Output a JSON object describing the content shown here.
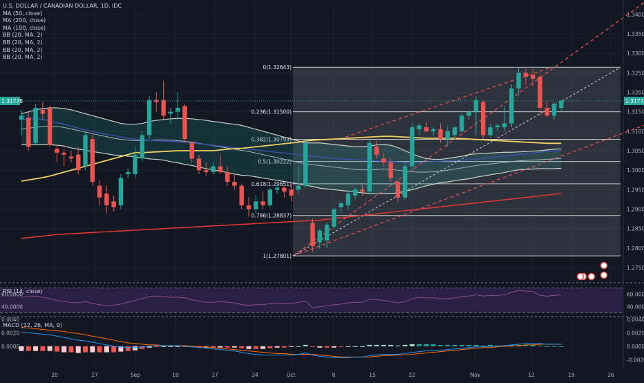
{
  "legend": {
    "title": "U.S. DOLLAR / CANADIAN DOLLAR, 1D, IDC",
    "indicators": [
      "MA (50, close)",
      "MA (200, close)",
      "MA (100, close)",
      "BB (20, MA, 2)",
      "BB (20, MA, 2)",
      "BB (20, MA, 2)",
      "BB (20, MA, 2)"
    ]
  },
  "rsi_label": "RSI (14, close)",
  "macd_label": "MACD (12, 26, MA, 9)",
  "colors": {
    "background": "#131722",
    "up": "#26a69a",
    "down": "#ef5350",
    "ma50": "#f0d264",
    "ma200": "#e53935",
    "ma100": "#3f51b5",
    "bb": "#c8d2c8",
    "fib": "#c8c8c8",
    "rsi_bg": "#2a1f45",
    "rsi_line": "#8a4f8c",
    "macd_line": "#2196f3",
    "signal_line": "#ff6d00"
  },
  "chart_data": {
    "type": "candlestick",
    "title": "U.S. DOLLAR / CANADIAN DOLLAR, 1D, IDC",
    "price_axis": {
      "range": [
        1.272,
        1.3412
      ],
      "ticks": [
        "1.34000",
        "1.33500",
        "1.33000",
        "1.32500",
        "1.32000",
        "1.31500",
        "1.31000",
        "1.30500",
        "1.30000",
        "1.29500",
        "1.29000",
        "1.28500",
        "1.28000",
        "1.27500"
      ]
    },
    "last_price": "1.31778",
    "x_axis": {
      "ticks": [
        "20",
        "27",
        "Sep",
        "10",
        "17",
        "24",
        "Oct",
        "8",
        "15",
        "22",
        "Nov",
        "12",
        "19",
        "26"
      ]
    },
    "candles": [
      {
        "o": 1.313,
        "h": 1.3155,
        "l": 1.309,
        "c": 1.314
      },
      {
        "o": 1.3135,
        "h": 1.315,
        "l": 1.305,
        "c": 1.306
      },
      {
        "o": 1.307,
        "h": 1.317,
        "l": 1.3065,
        "c": 1.316
      },
      {
        "o": 1.3155,
        "h": 1.3175,
        "l": 1.313,
        "c": 1.3145
      },
      {
        "o": 1.316,
        "h": 1.3165,
        "l": 1.306,
        "c": 1.3065
      },
      {
        "o": 1.3055,
        "h": 1.3065,
        "l": 1.302,
        "c": 1.3045
      },
      {
        "o": 1.3045,
        "h": 1.3055,
        "l": 1.301,
        "c": 1.304
      },
      {
        "o": 1.3035,
        "h": 1.305,
        "l": 1.302,
        "c": 1.303
      },
      {
        "o": 1.304,
        "h": 1.306,
        "l": 1.299,
        "c": 1.3
      },
      {
        "o": 1.301,
        "h": 1.31,
        "l": 1.3,
        "c": 1.309
      },
      {
        "o": 1.308,
        "h": 1.3095,
        "l": 1.296,
        "c": 1.297
      },
      {
        "o": 1.296,
        "h": 1.2975,
        "l": 1.291,
        "c": 1.293
      },
      {
        "o": 1.294,
        "h": 1.296,
        "l": 1.289,
        "c": 1.291
      },
      {
        "o": 1.292,
        "h": 1.2935,
        "l": 1.2895,
        "c": 1.2905
      },
      {
        "o": 1.291,
        "h": 1.299,
        "l": 1.29,
        "c": 1.298
      },
      {
        "o": 1.299,
        "h": 1.3005,
        "l": 1.298,
        "c": 1.2995
      },
      {
        "o": 1.299,
        "h": 1.306,
        "l": 1.298,
        "c": 1.304
      },
      {
        "o": 1.303,
        "h": 1.31,
        "l": 1.302,
        "c": 1.309
      },
      {
        "o": 1.309,
        "h": 1.319,
        "l": 1.308,
        "c": 1.318
      },
      {
        "o": 1.318,
        "h": 1.32,
        "l": 1.315,
        "c": 1.3175
      },
      {
        "o": 1.318,
        "h": 1.323,
        "l": 1.313,
        "c": 1.314
      },
      {
        "o": 1.3145,
        "h": 1.316,
        "l": 1.312,
        "c": 1.315
      },
      {
        "o": 1.315,
        "h": 1.32,
        "l": 1.313,
        "c": 1.316
      },
      {
        "o": 1.3165,
        "h": 1.317,
        "l": 1.307,
        "c": 1.308
      },
      {
        "o": 1.307,
        "h": 1.3075,
        "l": 1.302,
        "c": 1.303
      },
      {
        "o": 1.303,
        "h": 1.304,
        "l": 1.299,
        "c": 1.3
      },
      {
        "o": 1.3,
        "h": 1.302,
        "l": 1.2985,
        "c": 1.2995
      },
      {
        "o": 1.2995,
        "h": 1.302,
        "l": 1.299,
        "c": 1.301
      },
      {
        "o": 1.301,
        "h": 1.304,
        "l": 1.299,
        "c": 1.2995
      },
      {
        "o": 1.2995,
        "h": 1.301,
        "l": 1.296,
        "c": 1.297
      },
      {
        "o": 1.297,
        "h": 1.299,
        "l": 1.295,
        "c": 1.296
      },
      {
        "o": 1.296,
        "h": 1.2965,
        "l": 1.29,
        "c": 1.291
      },
      {
        "o": 1.291,
        "h": 1.293,
        "l": 1.288,
        "c": 1.29
      },
      {
        "o": 1.29,
        "h": 1.2935,
        "l": 1.289,
        "c": 1.292
      },
      {
        "o": 1.292,
        "h": 1.2945,
        "l": 1.29,
        "c": 1.291
      },
      {
        "o": 1.291,
        "h": 1.2955,
        "l": 1.2905,
        "c": 1.295
      },
      {
        "o": 1.295,
        "h": 1.2965,
        "l": 1.294,
        "c": 1.2955
      },
      {
        "o": 1.2955,
        "h": 1.296,
        "l": 1.293,
        "c": 1.2945
      },
      {
        "o": 1.295,
        "h": 1.2965,
        "l": 1.292,
        "c": 1.2935
      },
      {
        "o": 1.295,
        "h": 1.301,
        "l": 1.294,
        "c": 1.296
      },
      {
        "o": 1.296,
        "h": 1.308,
        "l": 1.2955,
        "c": 1.307
      },
      {
        "o": 1.2865,
        "h": 1.2875,
        "l": 1.279,
        "c": 1.2805
      },
      {
        "o": 1.2815,
        "h": 1.285,
        "l": 1.28,
        "c": 1.2845
      },
      {
        "o": 1.282,
        "h": 1.2865,
        "l": 1.28,
        "c": 1.286
      },
      {
        "o": 1.2855,
        "h": 1.2905,
        "l": 1.285,
        "c": 1.29
      },
      {
        "o": 1.2905,
        "h": 1.292,
        "l": 1.289,
        "c": 1.2915
      },
      {
        "o": 1.291,
        "h": 1.295,
        "l": 1.29,
        "c": 1.294
      },
      {
        "o": 1.2935,
        "h": 1.2955,
        "l": 1.2925,
        "c": 1.295
      },
      {
        "o": 1.295,
        "h": 1.2965,
        "l": 1.2935,
        "c": 1.2945
      },
      {
        "o": 1.2945,
        "h": 1.308,
        "l": 1.294,
        "c": 1.307
      },
      {
        "o": 1.306,
        "h": 1.3075,
        "l": 1.303,
        "c": 1.304
      },
      {
        "o": 1.303,
        "h": 1.3045,
        "l": 1.301,
        "c": 1.302
      },
      {
        "o": 1.302,
        "h": 1.303,
        "l": 1.297,
        "c": 1.298
      },
      {
        "o": 1.297,
        "h": 1.2975,
        "l": 1.292,
        "c": 1.293
      },
      {
        "o": 1.293,
        "h": 1.302,
        "l": 1.2925,
        "c": 1.301
      },
      {
        "o": 1.301,
        "h": 1.312,
        "l": 1.3,
        "c": 1.311
      },
      {
        "o": 1.3105,
        "h": 1.312,
        "l": 1.309,
        "c": 1.3115
      },
      {
        "o": 1.311,
        "h": 1.3125,
        "l": 1.3095,
        "c": 1.31
      },
      {
        "o": 1.31,
        "h": 1.311,
        "l": 1.309,
        "c": 1.3105
      },
      {
        "o": 1.3105,
        "h": 1.312,
        "l": 1.307,
        "c": 1.308
      },
      {
        "o": 1.308,
        "h": 1.3115,
        "l": 1.306,
        "c": 1.31
      },
      {
        "o": 1.309,
        "h": 1.3115,
        "l": 1.308,
        "c": 1.311
      },
      {
        "o": 1.31,
        "h": 1.315,
        "l": 1.3095,
        "c": 1.314
      },
      {
        "o": 1.314,
        "h": 1.3155,
        "l": 1.313,
        "c": 1.315
      },
      {
        "o": 1.315,
        "h": 1.319,
        "l": 1.309,
        "c": 1.318
      },
      {
        "o": 1.3175,
        "h": 1.318,
        "l": 1.308,
        "c": 1.309
      },
      {
        "o": 1.309,
        "h": 1.312,
        "l": 1.3085,
        "c": 1.311
      },
      {
        "o": 1.311,
        "h": 1.312,
        "l": 1.31,
        "c": 1.3115
      },
      {
        "o": 1.311,
        "h": 1.3165,
        "l": 1.31,
        "c": 1.312
      },
      {
        "o": 1.312,
        "h": 1.322,
        "l": 1.311,
        "c": 1.321
      },
      {
        "o": 1.321,
        "h": 1.3264,
        "l": 1.319,
        "c": 1.325
      },
      {
        "o": 1.325,
        "h": 1.326,
        "l": 1.322,
        "c": 1.324
      },
      {
        "o": 1.3245,
        "h": 1.326,
        "l": 1.3215,
        "c": 1.3235
      },
      {
        "o": 1.324,
        "h": 1.325,
        "l": 1.314,
        "c": 1.316
      },
      {
        "o": 1.316,
        "h": 1.3175,
        "l": 1.3135,
        "c": 1.314
      },
      {
        "o": 1.314,
        "h": 1.3175,
        "l": 1.313,
        "c": 1.317
      },
      {
        "o": 1.316,
        "h": 1.318,
        "l": 1.315,
        "c": 1.3178
      }
    ],
    "ma50": [
      1.2972,
      1.2975,
      1.2978,
      1.2981,
      1.2985,
      1.299,
      1.2995,
      1.3,
      1.3005,
      1.301,
      1.3015,
      1.302,
      1.3025,
      1.303,
      1.3035,
      1.304,
      1.3045,
      1.3045,
      1.3046,
      1.3047,
      1.3048,
      1.3049,
      1.305,
      1.305,
      1.305,
      1.305,
      1.305,
      1.305,
      1.3052,
      1.3054,
      1.3055,
      1.3056,
      1.3058,
      1.306,
      1.3062,
      1.3064,
      1.3066,
      1.3068,
      1.307,
      1.3072,
      1.3075,
      1.3077,
      1.3078,
      1.3079,
      1.308,
      1.3081,
      1.3082,
      1.3083,
      1.3084,
      1.3085,
      1.3086,
      1.3087,
      1.3087,
      1.3086,
      1.3085,
      1.3084,
      1.3083,
      1.3082,
      1.3082,
      1.3082,
      1.3082,
      1.3082,
      1.3081,
      1.308,
      1.3079,
      1.3078,
      1.3077,
      1.3076,
      1.3075,
      1.3074,
      1.3073,
      1.3072,
      1.3071,
      1.307,
      1.3069,
      1.3069,
      1.3069
    ],
    "ma100": [
      1.313,
      1.3132,
      1.3132,
      1.313,
      1.3127,
      1.3122,
      1.3118,
      1.3113,
      1.3108,
      1.3104,
      1.31,
      1.3096,
      1.3092,
      1.3089,
      1.3085,
      1.3082,
      1.308,
      1.3078,
      1.3077,
      1.3076,
      1.3075,
      1.3074,
      1.3073,
      1.3072,
      1.307,
      1.3068,
      1.3066,
      1.3064,
      1.3062,
      1.306,
      1.3058,
      1.3056,
      1.3054,
      1.3052,
      1.305,
      1.3048,
      1.3046,
      1.3044,
      1.3042,
      1.304,
      1.3038,
      1.3036,
      1.3034,
      1.3032,
      1.303,
      1.3029,
      1.3028,
      1.3027,
      1.3026,
      1.3025,
      1.3024,
      1.3023,
      1.3022,
      1.3021,
      1.302,
      1.302,
      1.302,
      1.3021,
      1.3022,
      1.3023,
      1.3024,
      1.3025,
      1.3026,
      1.3027,
      1.3028,
      1.303,
      1.3032,
      1.3034,
      1.3036,
      1.3038,
      1.304,
      1.3042,
      1.3044,
      1.3046,
      1.3048,
      1.3049,
      1.305
    ],
    "ma200": [
      1.2825,
      1.2827,
      1.2829,
      1.2831,
      1.2833,
      1.2835,
      1.2836,
      1.2837,
      1.2838,
      1.2839,
      1.284,
      1.2841,
      1.2842,
      1.2843,
      1.2844,
      1.2845,
      1.2846,
      1.2847,
      1.2848,
      1.2849,
      1.285,
      1.2851,
      1.2852,
      1.2853,
      1.2854,
      1.2855,
      1.2856,
      1.2857,
      1.2858,
      1.2859,
      1.286,
      1.2861,
      1.2862,
      1.2863,
      1.2864,
      1.2865,
      1.2866,
      1.2867,
      1.2868,
      1.2869,
      1.287,
      1.2871,
      1.2872,
      1.2874,
      1.2876,
      1.2878,
      1.288,
      1.2882,
      1.2884,
      1.2886,
      1.2888,
      1.289,
      1.2892,
      1.2894,
      1.2896,
      1.2898,
      1.29,
      1.2902,
      1.2904,
      1.2906,
      1.2908,
      1.291,
      1.2912,
      1.2914,
      1.2916,
      1.2918,
      1.292,
      1.2922,
      1.2924,
      1.2926,
      1.2928,
      1.293,
      1.2932,
      1.2934,
      1.2936,
      1.2938,
      1.294
    ],
    "bb_upper": [
      1.3145,
      1.315,
      1.3155,
      1.3158,
      1.316,
      1.316,
      1.3158,
      1.3155,
      1.315,
      1.3145,
      1.314,
      1.3135,
      1.313,
      1.3125,
      1.312,
      1.3118,
      1.3118,
      1.312,
      1.3125,
      1.3128,
      1.313,
      1.3132,
      1.3133,
      1.3133,
      1.3132,
      1.313,
      1.3128,
      1.3125,
      1.3123,
      1.312,
      1.3118,
      1.3115,
      1.311,
      1.3105,
      1.31,
      1.3095,
      1.309,
      1.3085,
      1.308,
      1.3075,
      1.307,
      1.307,
      1.307,
      1.3068,
      1.3066,
      1.3064,
      1.3062,
      1.306,
      1.306,
      1.3062,
      1.3065,
      1.3066,
      1.3064,
      1.3058,
      1.305,
      1.3042,
      1.3035,
      1.303,
      1.3028,
      1.3028,
      1.303,
      1.3033,
      1.3036,
      1.304,
      1.3042,
      1.3043,
      1.3044,
      1.3045,
      1.3046,
      1.3046,
      1.3047,
      1.3048,
      1.3049,
      1.305,
      1.3052,
      1.3054,
      1.3055
    ],
    "bb_middle": [
      1.3105,
      1.3108,
      1.311,
      1.3112,
      1.3113,
      1.3112,
      1.311,
      1.3106,
      1.3102,
      1.3098,
      1.3094,
      1.309,
      1.3086,
      1.3082,
      1.3079,
      1.3077,
      1.3076,
      1.3076,
      1.3077,
      1.3078,
      1.3078,
      1.3077,
      1.3076,
      1.3074,
      1.3072,
      1.3069,
      1.3066,
      1.3063,
      1.306,
      1.3057,
      1.3054,
      1.3051,
      1.3048,
      1.3044,
      1.304,
      1.3036,
      1.3032,
      1.3028,
      1.3024,
      1.302,
      1.3016,
      1.3014,
      1.3012,
      1.301,
      1.3008,
      1.3006,
      1.3004,
      1.3002,
      1.3001,
      1.3001,
      1.3002,
      1.3003,
      1.3002,
      1.3,
      1.2998,
      1.2996,
      1.2995,
      1.2995,
      1.2996,
      1.2998,
      1.3,
      1.3003,
      1.3006,
      1.3009,
      1.3012,
      1.3014,
      1.3016,
      1.3018,
      1.302,
      1.3022,
      1.3024,
      1.3025,
      1.3026,
      1.3027,
      1.3028,
      1.3029,
      1.303
    ],
    "bb_lower": [
      1.3065,
      1.3066,
      1.3065,
      1.3066,
      1.3066,
      1.3064,
      1.3062,
      1.3057,
      1.3054,
      1.3051,
      1.3048,
      1.3045,
      1.3042,
      1.3039,
      1.3038,
      1.3036,
      1.3034,
      1.3032,
      1.3029,
      1.3028,
      1.3026,
      1.3022,
      1.3019,
      1.3015,
      1.3012,
      1.3008,
      1.3004,
      1.3001,
      1.2997,
      1.2994,
      1.299,
      1.2987,
      1.2986,
      1.2983,
      1.298,
      1.2977,
      1.2974,
      1.2971,
      1.2968,
      1.2965,
      1.2962,
      1.2958,
      1.2954,
      1.2952,
      1.295,
      1.2948,
      1.2946,
      1.2944,
      1.2942,
      1.294,
      1.2939,
      1.294,
      1.294,
      1.2942,
      1.2946,
      1.295,
      1.2955,
      1.296,
      1.2964,
      1.2968,
      1.297,
      1.2973,
      1.2976,
      1.2978,
      1.2982,
      1.2985,
      1.2988,
      1.2991,
      1.2994,
      1.2998,
      1.3001,
      1.3002,
      1.3003,
      1.3004,
      1.3004,
      1.3004,
      1.3005
    ],
    "fibonacci": [
      {
        "label": "0(1.32643)",
        "price": 1.32643
      },
      {
        "label": "0.236(1.31500)",
        "price": 1.315
      },
      {
        "label": "0.382(1.30793)",
        "price": 1.30793
      },
      {
        "label": "0.5(1.30222)",
        "price": 1.30222
      },
      {
        "label": "0.618(1.29651)",
        "price": 1.29651
      },
      {
        "label": "0.786(1.28837)",
        "price": 1.28837
      },
      {
        "label": "1(1.27801)",
        "price": 1.27801
      }
    ],
    "rsi": {
      "ticks": [
        "60.0000",
        "40.0000"
      ],
      "range": [
        26,
        74
      ],
      "values": [
        55,
        56,
        57,
        55,
        53,
        50,
        48,
        47,
        46,
        48,
        45,
        43,
        41,
        42,
        44,
        47,
        50,
        53,
        56,
        57,
        56,
        55,
        55,
        54,
        51,
        49,
        47,
        47,
        48,
        47,
        46,
        43,
        42,
        43,
        43,
        45,
        46,
        45,
        45,
        47,
        49,
        38,
        40,
        41,
        43,
        44,
        46,
        47,
        47,
        52,
        51,
        50,
        48,
        46,
        48,
        53,
        55,
        54,
        54,
        53,
        53,
        54,
        56,
        57,
        59,
        57,
        58,
        58,
        59,
        63,
        66,
        65,
        64,
        58,
        57,
        58,
        59
      ]
    },
    "macd": {
      "ticks": [
        "0.0040",
        "0.0020",
        "0.0000",
        "-0.0020"
      ],
      "range": [
        -0.003,
        0.0043
      ],
      "macd": [
        0.0021,
        0.002,
        0.0019,
        0.0018,
        0.0017,
        0.0015,
        0.0013,
        0.0011,
        0.0009,
        0.0008,
        0.0006,
        0.0004,
        0.0002,
        0.0,
        -0.0001,
        -0.0002,
        -0.0002,
        -0.0001,
        0.0,
        0.0001,
        0.0001,
        0.0001,
        0.0001,
        0.0,
        -0.0001,
        -0.0002,
        -0.0003,
        -0.0004,
        -0.0005,
        -0.0006,
        -0.0007,
        -0.0009,
        -0.0011,
        -0.0012,
        -0.0013,
        -0.0013,
        -0.0013,
        -0.0013,
        -0.0013,
        -0.0012,
        -0.001,
        -0.0013,
        -0.0015,
        -0.0016,
        -0.0017,
        -0.0017,
        -0.0017,
        -0.0016,
        -0.0016,
        -0.0014,
        -0.0013,
        -0.0012,
        -0.0012,
        -0.0012,
        -0.0011,
        -0.0009,
        -0.0008,
        -0.0007,
        -0.0006,
        -0.0006,
        -0.0005,
        -0.0004,
        -0.0003,
        -0.0002,
        -0.0001,
        -0.0001,
        0.0,
        0.0,
        0.0001,
        0.0002,
        0.0003,
        0.0004,
        0.0004,
        0.0004,
        0.0003,
        0.0003,
        0.0003
      ],
      "signal": [
        0.0028,
        0.0027,
        0.0026,
        0.0025,
        0.0024,
        0.0023,
        0.0022,
        0.002,
        0.0019,
        0.0017,
        0.0015,
        0.0013,
        0.0011,
        0.0009,
        0.0007,
        0.0005,
        0.0004,
        0.0003,
        0.0002,
        0.0002,
        0.0001,
        0.0001,
        0.0001,
        0.0001,
        0.0,
        0.0,
        -0.0001,
        -0.0002,
        -0.0003,
        -0.0004,
        -0.0005,
        -0.0006,
        -0.0007,
        -0.0008,
        -0.0009,
        -0.001,
        -0.0011,
        -0.0011,
        -0.0012,
        -0.0012,
        -0.0012,
        -0.0012,
        -0.0013,
        -0.0014,
        -0.0015,
        -0.0016,
        -0.0016,
        -0.0016,
        -0.0016,
        -0.0016,
        -0.0015,
        -0.0014,
        -0.0014,
        -0.0013,
        -0.0013,
        -0.0012,
        -0.0011,
        -0.001,
        -0.0009,
        -0.0008,
        -0.0007,
        -0.0006,
        -0.0005,
        -0.0004,
        -0.0003,
        -0.0002,
        -0.0002,
        -0.0001,
        0.0,
        0.0,
        0.0001,
        0.0002,
        0.0002,
        0.0003,
        0.0003,
        0.0003,
        0.0003
      ]
    }
  }
}
